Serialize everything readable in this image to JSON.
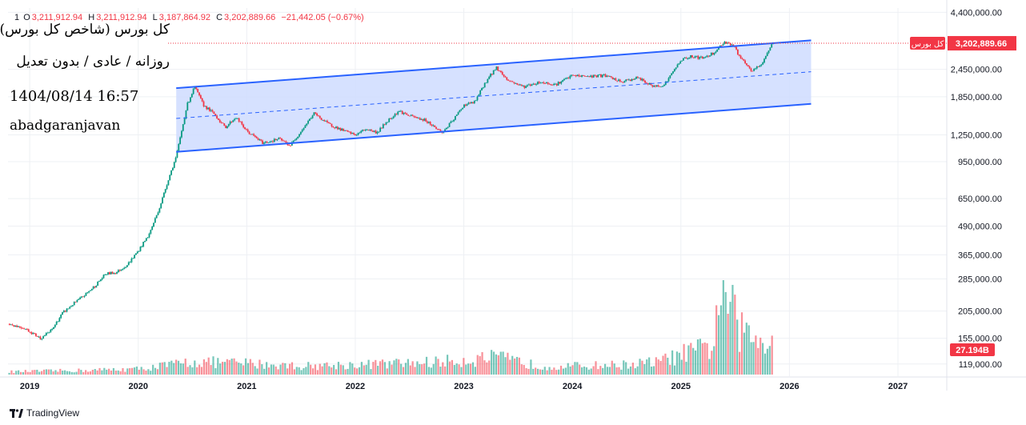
{
  "header": {
    "interval": "1",
    "ohlc": [
      {
        "key": "O",
        "value": "3,211,912.94"
      },
      {
        "key": "H",
        "value": "3,211,912.94"
      },
      {
        "key": "L",
        "value": "3,187,864.92"
      },
      {
        "key": "C",
        "value": "3,202,889.66"
      }
    ],
    "change": "−21,442.05 (−0.67%)"
  },
  "info": {
    "title": "کل بورس (شاخص کل بورس)",
    "period": "روزانه / عادی / بدون تعدیل",
    "date": "1404/08/14 16:57",
    "author": "abadgaranjavan"
  },
  "footer": {
    "brand": "TradingView"
  },
  "colors": {
    "up": "#089981",
    "down": "#f23645",
    "channel_line": "#2962ff",
    "channel_fill": "#cfdcff",
    "axis_text": "#131722",
    "grid": "#eef0f4"
  },
  "chart_data": {
    "type": "candlestick",
    "title": "کل بورس (شاخص کل بورس)",
    "scale": "log",
    "ylim": [
      105000,
      4600000
    ],
    "xlim": [
      2018.8,
      2027.45
    ],
    "price_axis_ticks": [
      4400000,
      3202889.66,
      2450000,
      1850000,
      1250000,
      950000,
      650000,
      490000,
      365000,
      285000,
      205000,
      155000,
      119000
    ],
    "price_axis_labels": [
      "4,400,000.00",
      "3,202,889.66",
      "2,450,000.00",
      "1,850,000.00",
      "1,250,000.00",
      "950,000.00",
      "650,000.00",
      "490,000.00",
      "365,000.00",
      "285,000.00",
      "205,000.00",
      "155,000.00",
      "119,000.00"
    ],
    "time_axis": [
      {
        "x": 2019,
        "label": "2019"
      },
      {
        "x": 2020,
        "label": "2020"
      },
      {
        "x": 2021,
        "label": "2021"
      },
      {
        "x": 2022,
        "label": "2022"
      },
      {
        "x": 2023,
        "label": "2023"
      },
      {
        "x": 2024,
        "label": "2024"
      },
      {
        "x": 2025,
        "label": "2025"
      },
      {
        "x": 2026,
        "label": "2026"
      },
      {
        "x": 2027,
        "label": "2027"
      }
    ],
    "series": [
      {
        "name": "کل بورس",
        "points": [
          [
            2018.8,
            180000
          ],
          [
            2018.95,
            172000
          ],
          [
            2019.1,
            155000
          ],
          [
            2019.2,
            168000
          ],
          [
            2019.3,
            200000
          ],
          [
            2019.4,
            220000
          ],
          [
            2019.5,
            240000
          ],
          [
            2019.6,
            265000
          ],
          [
            2019.7,
            300000
          ],
          [
            2019.8,
            305000
          ],
          [
            2019.9,
            330000
          ],
          [
            2020.0,
            380000
          ],
          [
            2020.1,
            450000
          ],
          [
            2020.2,
            600000
          ],
          [
            2020.28,
            800000
          ],
          [
            2020.35,
            1000000
          ],
          [
            2020.45,
            1700000
          ],
          [
            2020.52,
            2050000
          ],
          [
            2020.6,
            1700000
          ],
          [
            2020.7,
            1550000
          ],
          [
            2020.8,
            1350000
          ],
          [
            2020.9,
            1500000
          ],
          [
            2021.0,
            1300000
          ],
          [
            2021.15,
            1150000
          ],
          [
            2021.3,
            1200000
          ],
          [
            2021.4,
            1120000
          ],
          [
            2021.5,
            1300000
          ],
          [
            2021.62,
            1560000
          ],
          [
            2021.75,
            1400000
          ],
          [
            2021.9,
            1300000
          ],
          [
            2022.0,
            1250000
          ],
          [
            2022.1,
            1330000
          ],
          [
            2022.2,
            1280000
          ],
          [
            2022.3,
            1450000
          ],
          [
            2022.4,
            1600000
          ],
          [
            2022.5,
            1520000
          ],
          [
            2022.65,
            1450000
          ],
          [
            2022.8,
            1280000
          ],
          [
            2022.9,
            1450000
          ],
          [
            2023.0,
            1700000
          ],
          [
            2023.1,
            1750000
          ],
          [
            2023.2,
            2150000
          ],
          [
            2023.3,
            2500000
          ],
          [
            2023.4,
            2200000
          ],
          [
            2023.55,
            2050000
          ],
          [
            2023.7,
            2150000
          ],
          [
            2023.85,
            2100000
          ],
          [
            2024.0,
            2300000
          ],
          [
            2024.15,
            2280000
          ],
          [
            2024.3,
            2300000
          ],
          [
            2024.45,
            2150000
          ],
          [
            2024.6,
            2250000
          ],
          [
            2024.75,
            2050000
          ],
          [
            2024.85,
            2100000
          ],
          [
            2025.0,
            2700000
          ],
          [
            2025.1,
            2800000
          ],
          [
            2025.2,
            2750000
          ],
          [
            2025.3,
            2900000
          ],
          [
            2025.4,
            3250000
          ],
          [
            2025.48,
            3150000
          ],
          [
            2025.55,
            2750000
          ],
          [
            2025.65,
            2400000
          ],
          [
            2025.75,
            2600000
          ],
          [
            2025.8,
            2950000
          ],
          [
            2025.85,
            3202889.66
          ]
        ]
      }
    ],
    "volume": {
      "name": "Volume",
      "last_label": "27.194B",
      "points": [
        [
          2018.8,
          2
        ],
        [
          2019.5,
          3
        ],
        [
          2020.0,
          4
        ],
        [
          2020.5,
          9
        ],
        [
          2021.0,
          8
        ],
        [
          2021.5,
          6
        ],
        [
          2022.0,
          7
        ],
        [
          2022.5,
          8
        ],
        [
          2023.0,
          10
        ],
        [
          2023.3,
          12
        ],
        [
          2023.7,
          6
        ],
        [
          2024.0,
          6
        ],
        [
          2024.5,
          7
        ],
        [
          2024.8,
          9
        ],
        [
          2025.0,
          14
        ],
        [
          2025.3,
          20
        ],
        [
          2025.35,
          60
        ],
        [
          2025.45,
          48
        ],
        [
          2025.55,
          30
        ],
        [
          2025.7,
          25
        ],
        [
          2025.85,
          27.194
        ]
      ]
    },
    "channel": {
      "upper": [
        [
          2020.35,
          2020000
        ],
        [
          2026.2,
          3300000
        ]
      ],
      "lower": [
        [
          2020.35,
          1050000
        ],
        [
          2026.2,
          1720000
        ]
      ],
      "mid": [
        [
          2020.35,
          1480000
        ],
        [
          2026.2,
          2390000
        ]
      ]
    },
    "last_price": 3202889.66,
    "last_price_label": "3,202,889.66",
    "last_price_tag": "کل بورس"
  }
}
